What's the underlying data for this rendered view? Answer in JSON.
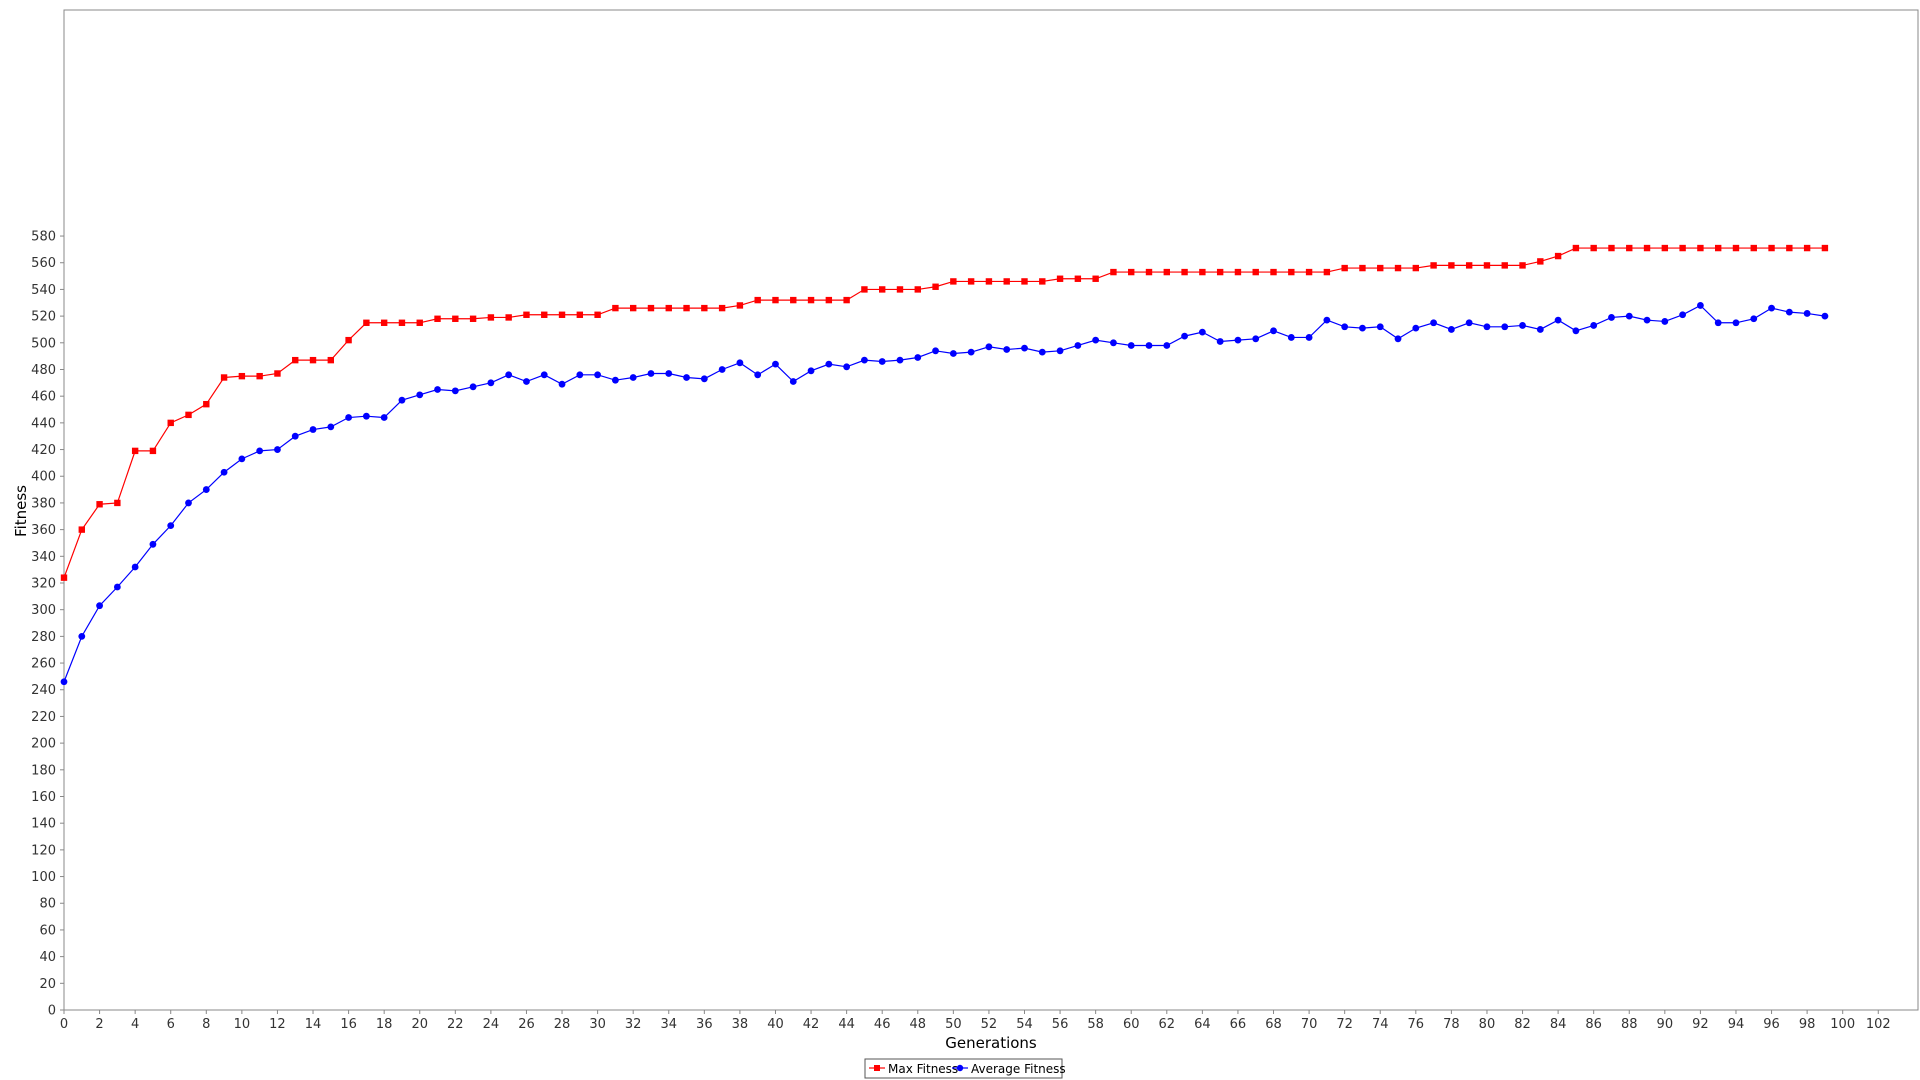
{
  "chart_data": {
    "type": "line",
    "title": "",
    "xlabel": "Generations",
    "ylabel": "Fitness",
    "xlim": [
      0,
      104
    ],
    "ylim": [
      0,
      600
    ],
    "xticks": [
      0,
      2,
      4,
      6,
      8,
      10,
      12,
      14,
      16,
      18,
      20,
      22,
      24,
      26,
      28,
      30,
      32,
      34,
      36,
      38,
      40,
      42,
      44,
      46,
      48,
      50,
      52,
      54,
      56,
      58,
      60,
      62,
      64,
      66,
      68,
      70,
      72,
      74,
      76,
      78,
      80,
      82,
      84,
      86,
      88,
      90,
      92,
      94,
      96,
      98,
      100,
      102
    ],
    "yticks": [
      0,
      20,
      40,
      60,
      80,
      100,
      120,
      140,
      160,
      180,
      200,
      220,
      240,
      260,
      280,
      300,
      320,
      340,
      360,
      380,
      400,
      420,
      440,
      460,
      480,
      500,
      520,
      540,
      560,
      580
    ],
    "grid": false,
    "legend_position": "bottom-center",
    "series": [
      {
        "name": "Max Fitness",
        "color": "#ff0000",
        "marker": "square",
        "values": [
          324,
          360,
          379,
          380,
          419,
          419,
          440,
          446,
          454,
          474,
          475,
          475,
          477,
          487,
          487,
          487,
          502,
          515,
          515,
          515,
          515,
          518,
          518,
          518,
          519,
          519,
          521,
          521,
          521,
          521,
          521,
          526,
          526,
          526,
          526,
          526,
          526,
          526,
          528,
          532,
          532,
          532,
          532,
          532,
          532,
          540,
          540,
          540,
          540,
          542,
          546,
          546,
          546,
          546,
          546,
          546,
          548,
          548,
          548,
          553,
          553,
          553,
          553,
          553,
          553,
          553,
          553,
          553,
          553,
          553,
          553,
          553,
          556,
          556,
          556,
          556,
          556,
          558,
          558,
          558,
          558,
          558,
          558,
          561,
          565,
          571,
          571,
          571,
          571,
          571,
          571,
          571,
          571,
          571,
          571,
          571,
          571,
          571,
          571,
          571
        ]
      },
      {
        "name": "Average Fitness",
        "color": "#0000ff",
        "marker": "circle",
        "values": [
          246,
          280,
          303,
          317,
          332,
          349,
          363,
          380,
          390,
          403,
          413,
          419,
          420,
          430,
          435,
          437,
          444,
          445,
          444,
          457,
          461,
          465,
          464,
          467,
          470,
          476,
          471,
          476,
          469,
          476,
          476,
          472,
          474,
          477,
          477,
          474,
          473,
          480,
          485,
          476,
          484,
          471,
          479,
          484,
          482,
          487,
          486,
          487,
          489,
          494,
          492,
          493,
          497,
          495,
          496,
          493,
          494,
          498,
          502,
          500,
          498,
          498,
          498,
          505,
          508,
          501,
          502,
          503,
          509,
          504,
          504,
          517,
          512,
          511,
          512,
          503,
          511,
          515,
          510,
          515,
          512,
          512,
          513,
          510,
          517,
          509,
          513,
          519,
          520,
          517,
          516,
          521,
          528,
          515,
          515,
          518,
          526,
          523,
          522,
          520
        ]
      }
    ]
  }
}
